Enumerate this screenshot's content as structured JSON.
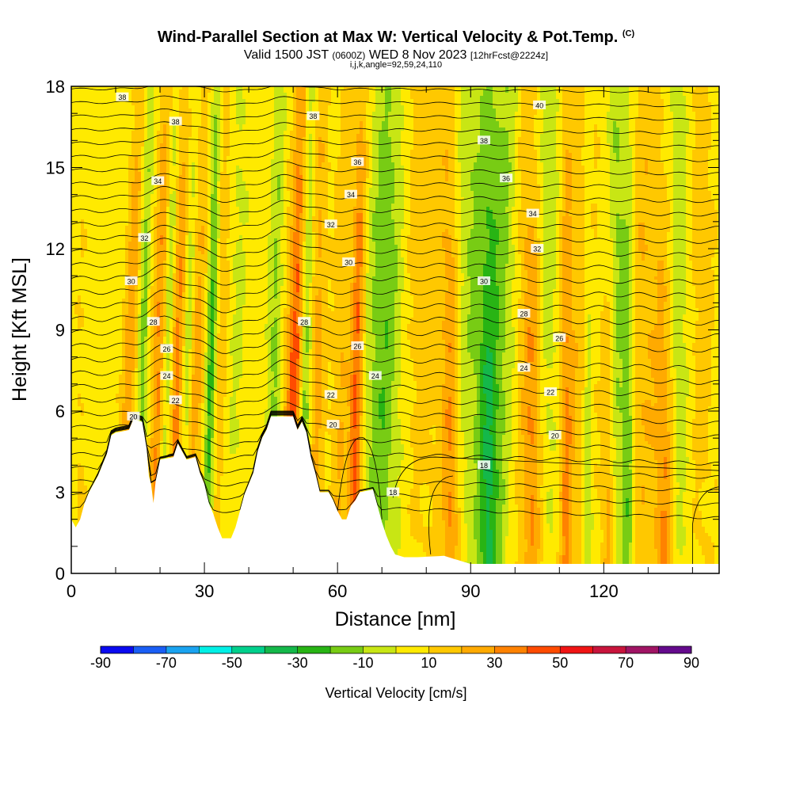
{
  "header": {
    "title": "Wind-Parallel Section at Max W: Vertical Velocity & Pot.Temp.",
    "copyright": "(C)",
    "valid_prefix": "Valid 1500 JST",
    "valid_zulu": "(0600Z)",
    "valid_date": "WED 8 Nov 2023",
    "forecast": "[12hrFcst@2224z]",
    "indices": "i,j,k,angle=92,59,24,110"
  },
  "chart_data": {
    "type": "heatmap",
    "title": "Wind-Parallel Section at Max W: Vertical Velocity & Pot.Temp.",
    "xlabel": "Distance [nm]",
    "ylabel": "Height [Kft MSL]",
    "xlim": [
      0,
      146
    ],
    "ylim": [
      0,
      18
    ],
    "xticks": [
      0,
      30,
      60,
      90,
      120
    ],
    "yticks": [
      0,
      3,
      6,
      9,
      12,
      15,
      18
    ],
    "xtick_labels": [
      "0",
      "30",
      "60",
      "90",
      "120"
    ],
    "ytick_labels": [
      "0",
      "3",
      "6",
      "9",
      "12",
      "15",
      "18"
    ],
    "colorbar": {
      "label": "Vertical Velocity [cm/s]",
      "ticks": [
        "-90",
        "-70",
        "-50",
        "-30",
        "-10",
        "10",
        "30",
        "50",
        "70",
        "90"
      ],
      "colors": [
        "#0a0af0",
        "#1a5ef5",
        "#1aa3f0",
        "#00f0e6",
        "#00d08c",
        "#14b84a",
        "#28b414",
        "#78cc14",
        "#c8e614",
        "#ffea00",
        "#ffc800",
        "#ffaa00",
        "#ff8200",
        "#ff4b00",
        "#f01414",
        "#c8143c",
        "#a01464",
        "#640a8c"
      ]
    },
    "contour_labels": [
      {
        "value": "38",
        "x": 11.5,
        "y": 17.6
      },
      {
        "value": "38",
        "x": 23.5,
        "y": 16.7
      },
      {
        "value": "34",
        "x": 19.5,
        "y": 14.5
      },
      {
        "value": "32",
        "x": 16.5,
        "y": 12.4
      },
      {
        "value": "30",
        "x": 13.5,
        "y": 10.8
      },
      {
        "value": "28",
        "x": 18.5,
        "y": 9.3
      },
      {
        "value": "26",
        "x": 21.5,
        "y": 8.3
      },
      {
        "value": "24",
        "x": 21.5,
        "y": 7.3
      },
      {
        "value": "22",
        "x": 23.5,
        "y": 6.4
      },
      {
        "value": "20",
        "x": 14.0,
        "y": 5.8
      },
      {
        "value": "38",
        "x": 54.5,
        "y": 16.9
      },
      {
        "value": "36",
        "x": 64.5,
        "y": 15.2
      },
      {
        "value": "34",
        "x": 63.0,
        "y": 14.0
      },
      {
        "value": "32",
        "x": 58.5,
        "y": 12.9
      },
      {
        "value": "30",
        "x": 62.5,
        "y": 11.5
      },
      {
        "value": "28",
        "x": 52.5,
        "y": 9.3
      },
      {
        "value": "26",
        "x": 64.5,
        "y": 8.4
      },
      {
        "value": "24",
        "x": 68.5,
        "y": 7.3
      },
      {
        "value": "22",
        "x": 58.5,
        "y": 6.6
      },
      {
        "value": "20",
        "x": 59.0,
        "y": 5.5
      },
      {
        "value": "18",
        "x": 72.5,
        "y": 3.0
      },
      {
        "value": "40",
        "x": 105.5,
        "y": 17.3
      },
      {
        "value": "38",
        "x": 93.0,
        "y": 16.0
      },
      {
        "value": "36",
        "x": 98.0,
        "y": 14.6
      },
      {
        "value": "34",
        "x": 104.0,
        "y": 13.3
      },
      {
        "value": "32",
        "x": 105.0,
        "y": 12.0
      },
      {
        "value": "30",
        "x": 93.0,
        "y": 10.8
      },
      {
        "value": "28",
        "x": 102.0,
        "y": 9.6
      },
      {
        "value": "26",
        "x": 110.0,
        "y": 8.7
      },
      {
        "value": "24",
        "x": 102.0,
        "y": 7.6
      },
      {
        "value": "22",
        "x": 108.0,
        "y": 6.7
      },
      {
        "value": "20",
        "x": 109.0,
        "y": 5.1
      },
      {
        "value": "18",
        "x": 93.0,
        "y": 4.0
      }
    ],
    "grid": false
  }
}
